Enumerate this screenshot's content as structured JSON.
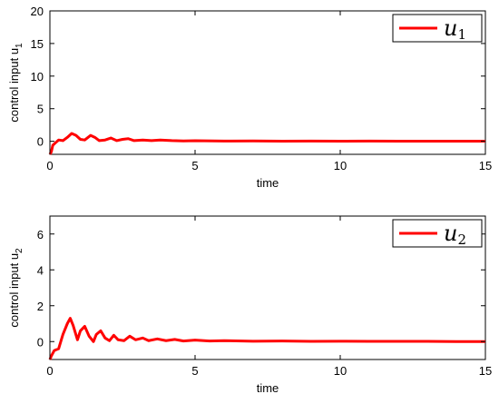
{
  "chart_data": [
    {
      "type": "line",
      "xlabel": "time",
      "ylabel": "control input u",
      "ylabel_sub": "1",
      "xlim": [
        0,
        15
      ],
      "ylim": [
        -2,
        20
      ],
      "xticks": [
        0,
        5,
        10,
        15
      ],
      "yticks": [
        0,
        5,
        10,
        15,
        20
      ],
      "legend_position": "top-right",
      "series": [
        {
          "name": "u",
          "name_sub": "1",
          "color": "#ff0000",
          "x": [
            0,
            0.05,
            0.1,
            0.2,
            0.3,
            0.45,
            0.6,
            0.75,
            0.9,
            1.05,
            1.2,
            1.4,
            1.55,
            1.7,
            1.9,
            2.1,
            2.3,
            2.5,
            2.7,
            2.9,
            3.2,
            3.5,
            3.8,
            4.2,
            4.6,
            5,
            6,
            7,
            8,
            9,
            10,
            11,
            12,
            13,
            14,
            15
          ],
          "y": [
            -2,
            -1.6,
            -0.6,
            -0.2,
            0.2,
            0.1,
            0.6,
            1.2,
            0.9,
            0.3,
            0.2,
            0.9,
            0.6,
            0.1,
            0.2,
            0.5,
            0.1,
            0.3,
            0.4,
            0.1,
            0.2,
            0.1,
            0.2,
            0.1,
            0.05,
            0.08,
            0.03,
            0.06,
            0.02,
            0.04,
            0.02,
            0.03,
            0.01,
            0.02,
            0.01,
            0.01
          ]
        }
      ]
    },
    {
      "type": "line",
      "xlabel": "time",
      "ylabel": "control input u",
      "ylabel_sub": "2",
      "xlim": [
        0,
        15
      ],
      "ylim": [
        -1,
        7
      ],
      "xticks": [
        0,
        5,
        10,
        15
      ],
      "yticks": [
        0,
        2,
        4,
        6
      ],
      "legend_position": "top-right",
      "series": [
        {
          "name": "u",
          "name_sub": "2",
          "color": "#ff0000",
          "x": [
            0,
            0.05,
            0.15,
            0.3,
            0.45,
            0.6,
            0.7,
            0.8,
            0.95,
            1.05,
            1.2,
            1.35,
            1.5,
            1.6,
            1.75,
            1.9,
            2.05,
            2.2,
            2.35,
            2.55,
            2.75,
            2.95,
            3.2,
            3.4,
            3.7,
            4,
            4.3,
            4.6,
            5,
            5.5,
            6,
            7,
            8,
            9,
            10,
            11,
            12,
            13,
            14,
            15
          ],
          "y": [
            -1,
            -0.8,
            -0.5,
            -0.4,
            0.4,
            1.0,
            1.3,
            0.9,
            0.1,
            0.6,
            0.85,
            0.3,
            0.0,
            0.4,
            0.6,
            0.2,
            0.05,
            0.35,
            0.1,
            0.05,
            0.3,
            0.1,
            0.2,
            0.05,
            0.15,
            0.05,
            0.12,
            0.03,
            0.08,
            0.03,
            0.05,
            0.02,
            0.03,
            0.01,
            0.02,
            0.01,
            0.01,
            0.01,
            0.0,
            0.0
          ]
        }
      ]
    }
  ]
}
